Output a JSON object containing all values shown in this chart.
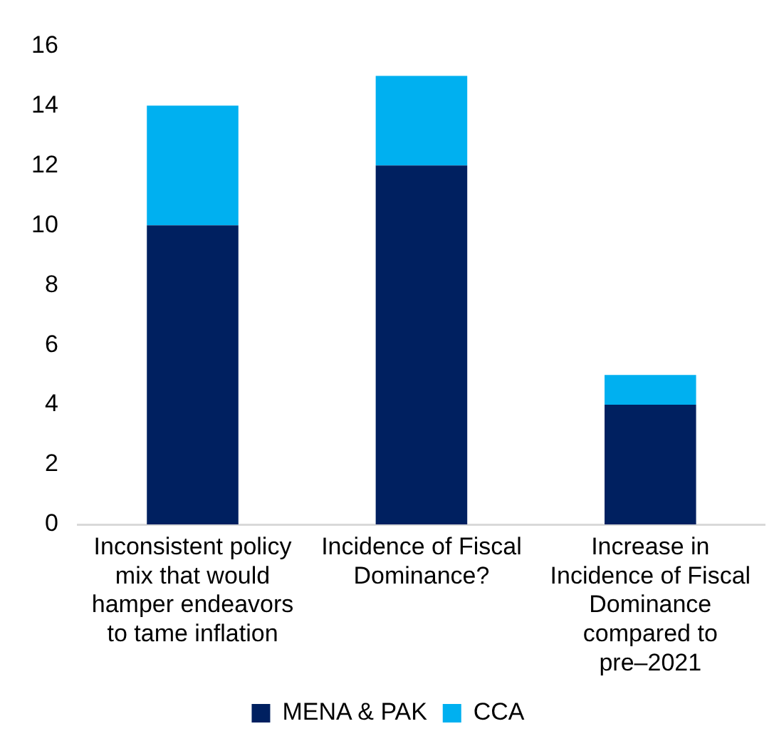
{
  "chart_data": {
    "type": "bar",
    "stacked": true,
    "categories": [
      "Inconsistent policy mix that would hamper endeavors to tame inflation",
      "Incidence of Fiscal Dominance?",
      "Increase in Incidence of Fiscal Dominance compared to pre–2021"
    ],
    "series": [
      {
        "name": "MENA & PAK",
        "color": "#002060",
        "values": [
          10,
          12,
          4
        ]
      },
      {
        "name": "CCA",
        "color": "#00b0f0",
        "values": [
          4,
          3,
          1
        ]
      }
    ],
    "ylim": [
      0,
      16
    ],
    "yticks": [
      0,
      2,
      4,
      6,
      8,
      10,
      12,
      14,
      16
    ],
    "grid": false,
    "legend": "bottom"
  }
}
